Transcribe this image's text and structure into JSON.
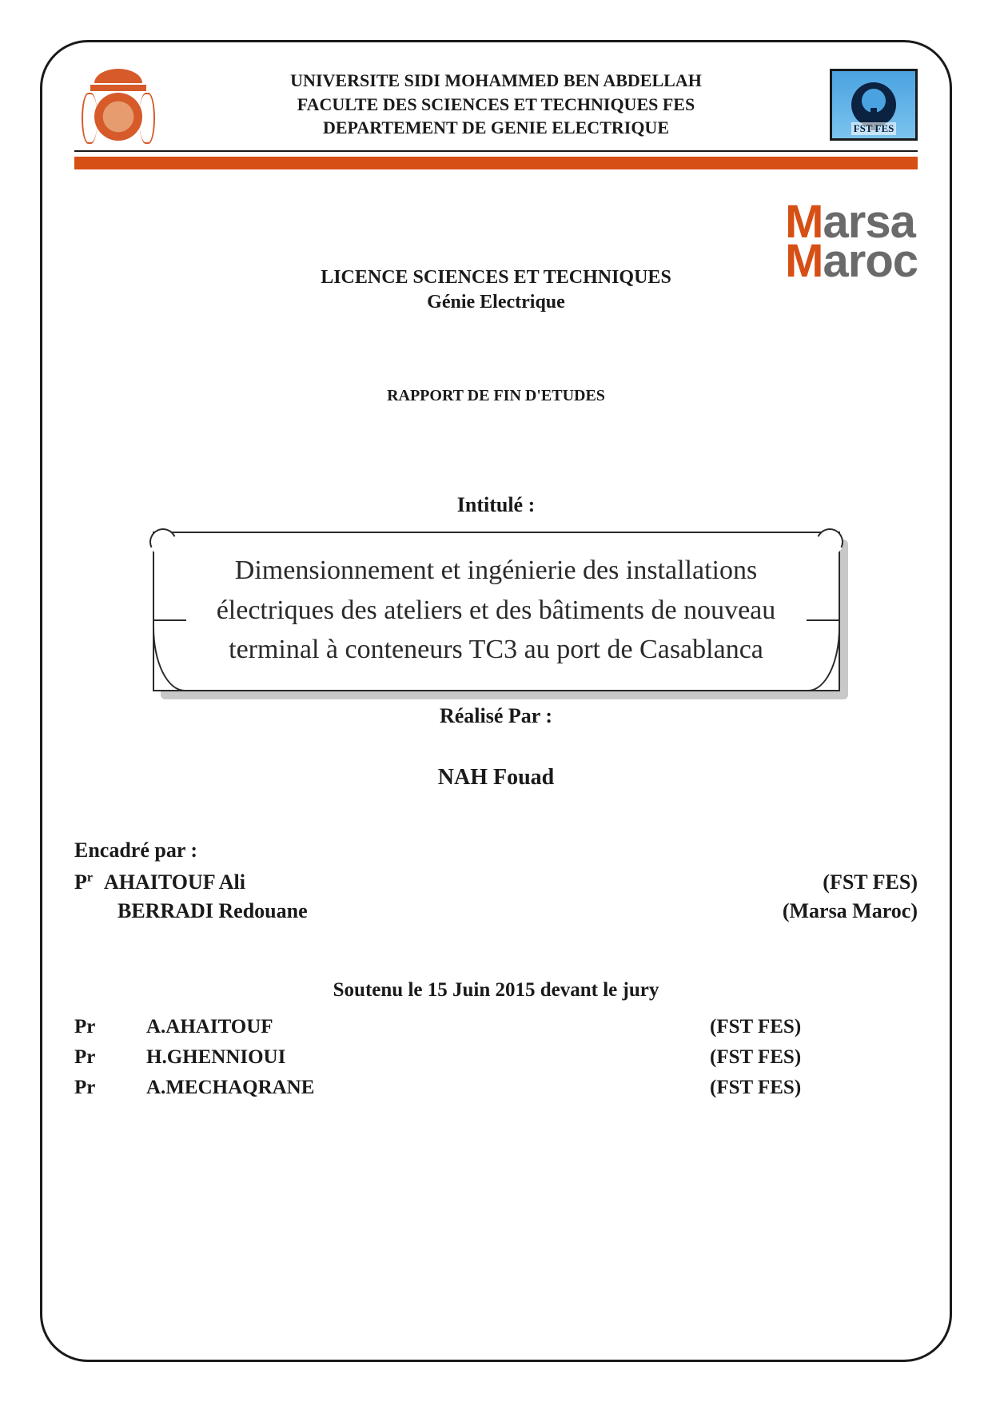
{
  "colors": {
    "text": "#1a1a1a",
    "accent": "#d64f14",
    "logo_gray": "#6a6a6a",
    "fst_bg_top": "#4aa3e0",
    "fst_bg_bottom": "#7cc3ef",
    "fst_dark": "#0b2340",
    "crest": "#d65a2a",
    "shadow": "#c8c8c8",
    "border": "#2a2a2a",
    "background": "#ffffff"
  },
  "header": {
    "line1": "UNIVERSITE SIDI MOHAMMED BEN ABDELLAH",
    "line2": "FACULTE DES SCIENCES ET TECHNIQUES FES",
    "line3": "DEPARTEMENT DE GENIE ELECTRIQUE",
    "right_logo_caption": "FST FES"
  },
  "company_logo": {
    "line1_prefix": "M",
    "line1_rest": "arsa",
    "line2_prefix": "M",
    "line2_rest": "aroc"
  },
  "degree": {
    "line1": "LICENCE SCIENCES ET TECHNIQUES",
    "line2": "Génie Electrique"
  },
  "report_type": "RAPPORT DE FIN D'ETUDES",
  "intitule_label": "Intitulé :",
  "title": "Dimensionnement et ingénierie des installations électriques des ateliers et des bâtiments de nouveau terminal à conteneurs TC3 au port de Casablanca",
  "realise_label": "Réalisé Par :",
  "author": "NAH Fouad",
  "encadre_label": "Encadré par :",
  "supervisors": [
    {
      "prefix": "P",
      "prefix_sup": "r",
      "name": "AHAITOUF Ali",
      "org": "(FST FES)"
    },
    {
      "prefix": "",
      "prefix_sup": "",
      "name": "BERRADI Redouane",
      "org": "(Marsa Maroc)"
    }
  ],
  "defense_line": "Soutenu le 15 Juin  2015 devant le jury",
  "jury": [
    {
      "prefix": "Pr",
      "name": "A.AHAITOUF",
      "org": "(FST FES)"
    },
    {
      "prefix": "Pr",
      "name": "H.GHENNIOUI",
      "org": "(FST FES)"
    },
    {
      "prefix": "Pr",
      "name": "A.MECHAQRANE",
      "org": "(FST FES)"
    }
  ]
}
